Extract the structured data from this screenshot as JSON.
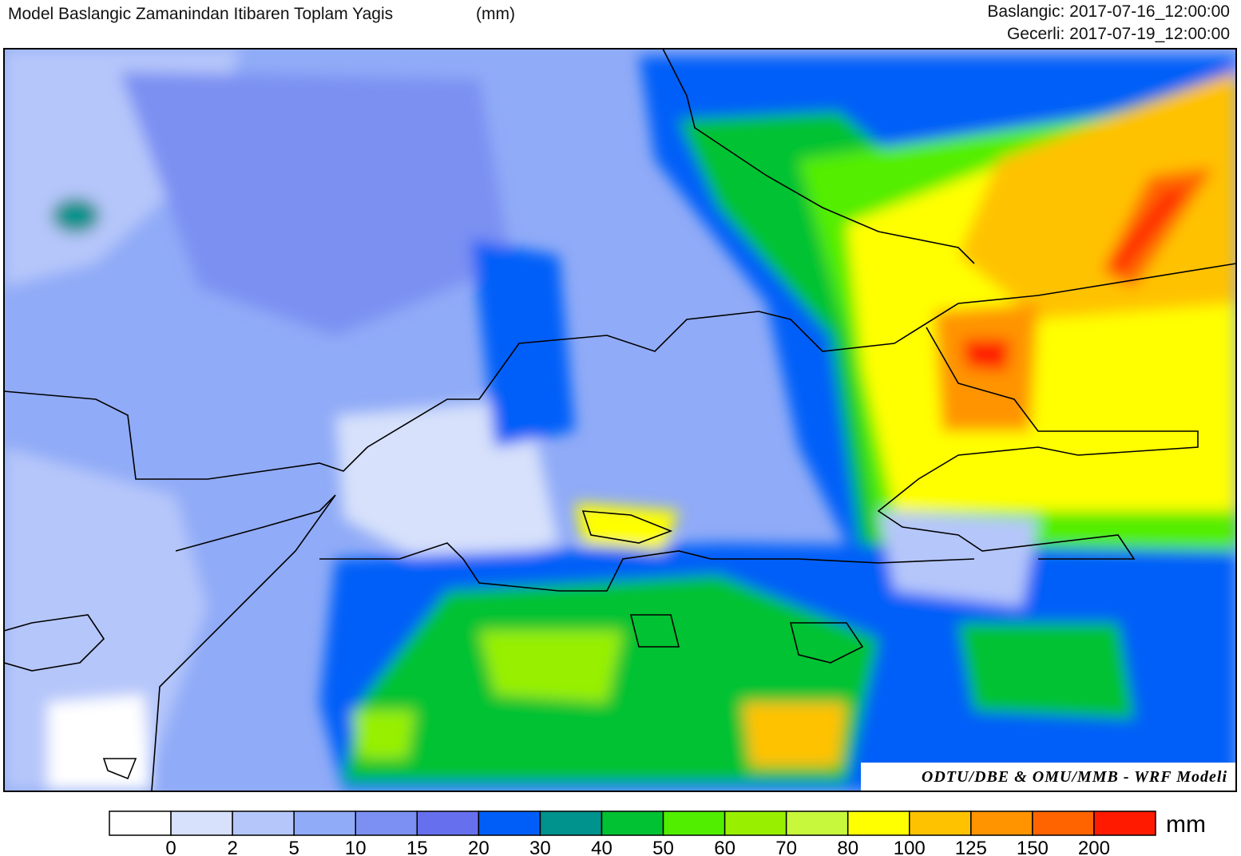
{
  "header": {
    "title": "Model Baslangic Zamanindan Itibaren Toplam Yagis",
    "unit": "(mm)",
    "start": "Baslangic: 2017-07-16_12:00:00",
    "valid": "Gecerli: 2017-07-19_12:00:00"
  },
  "map": {
    "credit": "ODTU/DBE & OMU/MMB - WRF Modeli"
  },
  "legend": {
    "levels": [
      0,
      2,
      5,
      10,
      15,
      20,
      30,
      40,
      50,
      60,
      70,
      80,
      100,
      125,
      150,
      200
    ],
    "colors": [
      "#ffffff",
      "#d7e1fb",
      "#b5c6fa",
      "#90abf7",
      "#7b90f2",
      "#6670ee",
      "#005ef8",
      "#00928c",
      "#00c232",
      "#52ee00",
      "#98f000",
      "#c8f83c",
      "#ffff00",
      "#ffc200",
      "#ff9400",
      "#ff6400",
      "#ff1a00"
    ],
    "unit": "mm"
  }
}
